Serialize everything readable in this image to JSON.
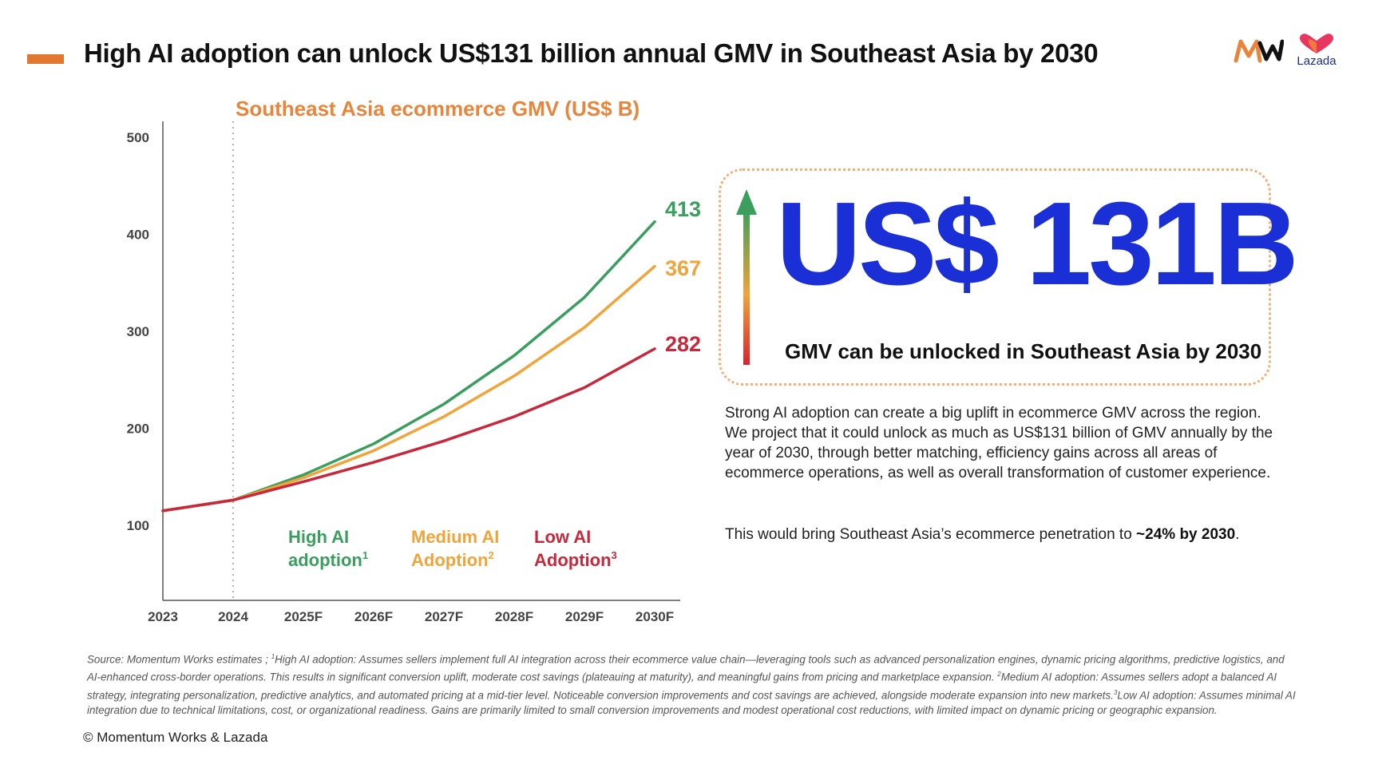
{
  "header": {
    "title": "High AI adoption can unlock US$131 billion annual GMV in Southeast Asia by 2030",
    "accent_color": "#e1782f",
    "logos": {
      "left": "mw-logo",
      "right": "lazada-logo",
      "lazada_text": "Lazada"
    }
  },
  "chart_data": {
    "type": "line",
    "title": "Southeast Asia ecommerce GMV (US$ B)",
    "xlabel": "",
    "ylabel": "",
    "categories": [
      "2023",
      "2024",
      "2025F",
      "2026F",
      "2027F",
      "2028F",
      "2029F",
      "2030F"
    ],
    "ylim": [
      50,
      500
    ],
    "yticks": [
      100,
      200,
      300,
      400,
      500
    ],
    "grid": false,
    "forecast_divider_at": "2024",
    "series": [
      {
        "name": "High AI adoption",
        "sup": "1",
        "color": "#3a9e5f",
        "values": [
          115,
          126,
          152,
          184,
          225,
          275,
          335,
          413
        ],
        "end_label": "413"
      },
      {
        "name": "Medium AI Adoption",
        "sup": "2",
        "color": "#f0a43a",
        "values": [
          115,
          126,
          149,
          177,
          212,
          254,
          304,
          367
        ],
        "end_label": "367"
      },
      {
        "name": "Low AI Adoption",
        "sup": "3",
        "color": "#c7283c",
        "values": [
          115,
          126,
          145,
          165,
          187,
          212,
          242,
          282
        ],
        "end_label": "282"
      }
    ],
    "legend_placement": "bottom-inside"
  },
  "callout": {
    "value": "US$ 131B",
    "caption": "GMV can be unlocked in Southeast Asia by 2030",
    "value_color": "#1b2fd6"
  },
  "body": {
    "paragraph1": "Strong AI adoption can create a big uplift in ecommerce GMV across the region. We project that it could unlock as much as US$131 billion of GMV annually by the year of 2030, through better matching, efficiency gains across all areas of ecommerce operations, as well as overall transformation of customer experience.",
    "paragraph2_prefix": "This would bring Southeast Asia’s ecommerce penetration to ",
    "paragraph2_bold": "~24% by 2030",
    "paragraph2_suffix": "."
  },
  "footnote": {
    "part0": "Source: Momentum Works estimates ; ",
    "sup1": "1",
    "part1": "High AI adoption: Assumes sellers implement full AI integration across their ecommerce value chain—leveraging tools such as advanced personalization engines, dynamic pricing algorithms, predictive logistics, and AI-enhanced cross-border operations. This results in significant conversion uplift, moderate cost savings (plateauing at maturity), and meaningful gains from pricing and marketplace expansion. ",
    "sup2": "2",
    "part2": "Medium AI adoption: Assumes sellers adopt a balanced AI strategy, integrating personalization, predictive analytics, and automated pricing at a mid-tier level. Noticeable conversion improvements and cost savings are achieved, alongside moderate expansion into new markets.",
    "sup3": "3",
    "part3": "Low AI adoption: Assumes minimal AI integration due to technical limitations, cost, or organizational readiness. Gains are primarily limited to small conversion improvements and modest operational cost reductions, with limited impact on dynamic pricing or geographic expansion."
  },
  "copyright": "© Momentum Works & Lazada"
}
